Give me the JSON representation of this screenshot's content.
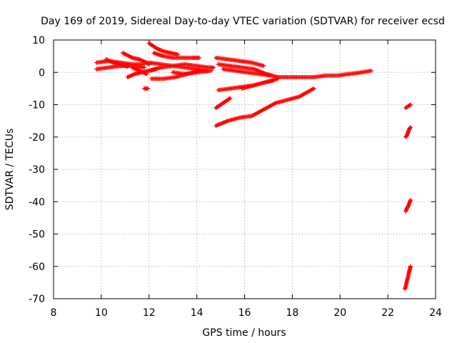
{
  "chart_data": {
    "type": "scatter",
    "title": "Day 169 of 2019, Sidereal Day-to-day VTEC variation (SDTVAR) for receiver ecsd",
    "xlabel": "GPS time / hours",
    "ylabel": "SDTVAR / TECUs",
    "xlim": [
      8,
      24
    ],
    "ylim": [
      -70,
      10
    ],
    "xticks": [
      8,
      10,
      12,
      14,
      16,
      18,
      20,
      22,
      24
    ],
    "yticks": [
      10,
      0,
      -10,
      -20,
      -30,
      -40,
      -50,
      -60,
      -70
    ],
    "grid": true,
    "legend": "none",
    "marker": "plus",
    "color": "#ff0000",
    "segments": [
      {
        "x": [
          9.8,
          10.3,
          10.8,
          11.3,
          11.8
        ],
        "y": [
          1.0,
          1.5,
          2.0,
          2.0,
          1.5
        ]
      },
      {
        "x": [
          9.8,
          10.3,
          10.8,
          11.3,
          11.8
        ],
        "y": [
          3.0,
          3.5,
          3.0,
          2.5,
          2.5
        ]
      },
      {
        "x": [
          10.2,
          10.5,
          10.8,
          11.1
        ],
        "y": [
          4.0,
          3.0,
          2.5,
          1.8
        ]
      },
      {
        "x": [
          10.9,
          11.3,
          11.6,
          11.9,
          12.0
        ],
        "y": [
          6.0,
          4.5,
          4.0,
          3.0,
          2.5
        ]
      },
      {
        "x": [
          11.1,
          11.4,
          11.7,
          12.0,
          12.3
        ],
        "y": [
          -1.5,
          -0.5,
          0.0,
          0.5,
          1.0
        ]
      },
      {
        "x": [
          11.3,
          11.6,
          11.9
        ],
        "y": [
          1.5,
          0.5,
          -0.5
        ]
      },
      {
        "x": [
          11.8,
          11.95
        ],
        "y": [
          -5.0,
          -5.0
        ]
      },
      {
        "x": [
          12.0,
          12.3,
          12.6,
          12.9,
          13.2
        ],
        "y": [
          9.0,
          7.5,
          6.5,
          6.0,
          5.5
        ]
      },
      {
        "x": [
          12.2,
          12.6,
          13.0,
          13.4,
          13.8,
          14.1
        ],
        "y": [
          6.0,
          5.0,
          4.5,
          4.5,
          4.5,
          4.5
        ]
      },
      {
        "x": [
          12.0,
          12.5,
          13.0,
          13.5,
          14.0,
          14.5,
          14.7
        ],
        "y": [
          0.5,
          1.5,
          2.0,
          2.5,
          2.0,
          1.5,
          1.5
        ]
      },
      {
        "x": [
          12.0,
          12.5,
          13.0,
          13.5,
          14.0,
          14.4
        ],
        "y": [
          3.0,
          2.5,
          2.0,
          1.5,
          1.0,
          0.5
        ]
      },
      {
        "x": [
          12.1,
          12.6,
          13.1,
          13.6,
          14.1
        ],
        "y": [
          -2.0,
          -2.0,
          -1.5,
          -0.5,
          0.5
        ]
      },
      {
        "x": [
          13.0,
          13.5,
          14.0,
          14.6
        ],
        "y": [
          0.0,
          -0.5,
          0.0,
          0.5
        ]
      },
      {
        "x": [
          14.8,
          15.3,
          15.8,
          16.3,
          16.8
        ],
        "y": [
          4.5,
          4.0,
          3.5,
          3.0,
          2.0
        ]
      },
      {
        "x": [
          14.9,
          15.4,
          15.9,
          16.4,
          16.9,
          17.4,
          17.9,
          18.4,
          18.9,
          19.4,
          19.9,
          20.4,
          20.9,
          21.3
        ],
        "y": [
          2.5,
          2.0,
          1.5,
          1.0,
          -0.5,
          -1.5,
          -1.5,
          -1.5,
          -1.5,
          -1.0,
          -1.0,
          -0.5,
          0.0,
          0.5
        ]
      },
      {
        "x": [
          15.1,
          15.6,
          16.1,
          16.6,
          17.1
        ],
        "y": [
          1.0,
          0.5,
          0.0,
          -0.5,
          -1.0
        ]
      },
      {
        "x": [
          14.9,
          15.4,
          15.9,
          16.4,
          16.9,
          17.2
        ],
        "y": [
          -5.5,
          -5.0,
          -4.5,
          -4.0,
          -3.0,
          -2.5
        ]
      },
      {
        "x": [
          15.9,
          16.4,
          16.9,
          17.4
        ],
        "y": [
          -5.0,
          -4.0,
          -3.0,
          -2.0
        ]
      },
      {
        "x": [
          14.8,
          15.0,
          15.2,
          15.4
        ],
        "y": [
          -11.0,
          -10.0,
          -9.0,
          -8.0
        ]
      },
      {
        "x": [
          14.8,
          15.3,
          15.8,
          16.3,
          16.8,
          17.3,
          17.8,
          18.3,
          18.9
        ],
        "y": [
          -16.5,
          -15.0,
          -14.0,
          -13.5,
          -11.5,
          -9.5,
          -8.5,
          -7.5,
          -5.0
        ]
      },
      {
        "x": [
          22.75,
          22.85,
          22.95
        ],
        "y": [
          -11.0,
          -10.5,
          -10.0
        ]
      },
      {
        "x": [
          22.75,
          22.8,
          22.85,
          22.9,
          22.95
        ],
        "y": [
          -20.0,
          -19.5,
          -18.5,
          -17.5,
          -17.0
        ]
      },
      {
        "x": [
          22.75,
          22.8,
          22.85,
          22.9,
          22.95
        ],
        "y": [
          -43.0,
          -42.0,
          -41.5,
          -40.5,
          -39.5
        ]
      },
      {
        "x": [
          22.72,
          22.76,
          22.8,
          22.84,
          22.88,
          22.92,
          22.95
        ],
        "y": [
          -67.0,
          -66.0,
          -64.5,
          -63.5,
          -62.0,
          -61.0,
          -60.0
        ]
      }
    ]
  }
}
